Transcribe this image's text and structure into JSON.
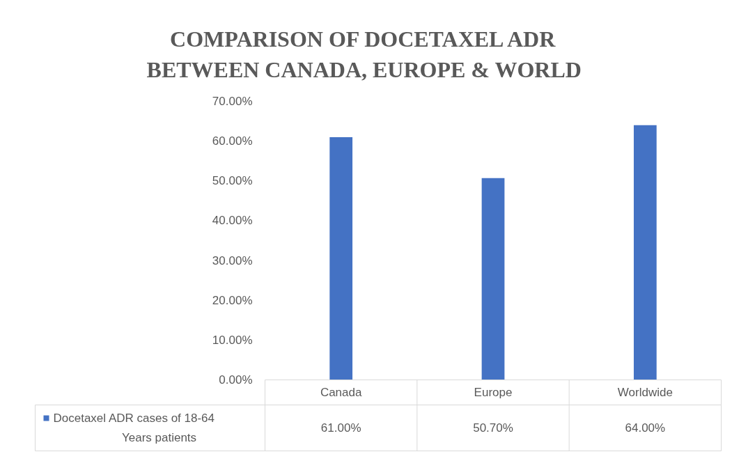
{
  "chart_data": {
    "type": "bar",
    "title": "COMPARISON OF DOCETAXEL ADR BETWEEN CANADA, EUROPE & WORLD",
    "categories": [
      "Canada",
      "Europe",
      "Worldwide"
    ],
    "series": [
      {
        "name": "Docetaxel ADR cases of 18-64 Years patients",
        "color": "#4472c4",
        "values": [
          61.0,
          50.7,
          64.0
        ],
        "value_labels": [
          "61.00%",
          "50.70%",
          "64.00%"
        ]
      }
    ],
    "ylim": [
      0,
      70
    ],
    "yticks": [
      {
        "value": 0,
        "label": "0.00%"
      },
      {
        "value": 10,
        "label": "10.00%"
      },
      {
        "value": 20,
        "label": "20.00%"
      },
      {
        "value": 30,
        "label": "30.00%"
      },
      {
        "value": 40,
        "label": "40.00%"
      },
      {
        "value": 50,
        "label": "50.00%"
      },
      {
        "value": 60,
        "label": "60.00%"
      },
      {
        "value": 70,
        "label": "70.00%"
      }
    ],
    "grid": false,
    "legend": "bottom"
  }
}
